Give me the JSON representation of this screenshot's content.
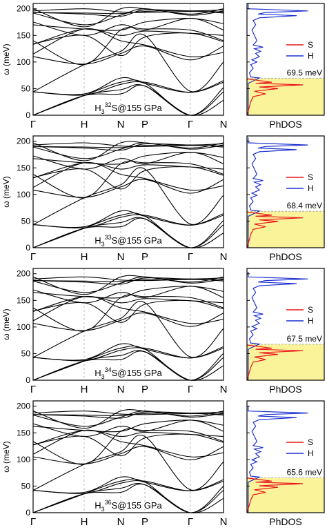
{
  "figure": {
    "ylabel": "ω (meV)",
    "kpath_labels": [
      "Γ",
      "H",
      "N",
      "P",
      "Γ",
      "N"
    ],
    "dos_label": "PhDOS",
    "legend": [
      "S",
      "H"
    ],
    "colors": {
      "S": "#e8151b",
      "H": "#1c2fd0",
      "fill": "#fbf399",
      "dash": "#aaaaaa"
    }
  },
  "chart_data": [
    {
      "type": "line",
      "title": "H₃³²S@155 GPa",
      "isotope": "32",
      "xlabel": "",
      "ylabel": "ω (meV)",
      "ylim": [
        0,
        210
      ],
      "yticks": [
        0,
        50,
        100,
        150,
        200
      ],
      "xticks": [
        "Γ",
        "H",
        "N",
        "P",
        "Γ",
        "N"
      ],
      "series_count": 18
    },
    {
      "type": "area",
      "title": "PhDOS",
      "cutoff_label": "69.5 meV",
      "cutoff": 69.5,
      "ylim": [
        0,
        210
      ],
      "series": [
        {
          "name": "S"
        },
        {
          "name": "H"
        }
      ]
    },
    {
      "type": "line",
      "title": "H₃³³S@155 GPa",
      "isotope": "33",
      "xlabel": "",
      "ylabel": "ω (meV)",
      "ylim": [
        0,
        210
      ],
      "yticks": [
        0,
        50,
        100,
        150,
        200
      ],
      "xticks": [
        "Γ",
        "H",
        "N",
        "P",
        "Γ",
        "N"
      ],
      "series_count": 18
    },
    {
      "type": "area",
      "title": "PhDOS",
      "cutoff_label": "68.4 meV",
      "cutoff": 68.4,
      "ylim": [
        0,
        210
      ],
      "series": [
        {
          "name": "S"
        },
        {
          "name": "H"
        }
      ]
    },
    {
      "type": "line",
      "title": "H₃³⁴S@155 GPa",
      "isotope": "34",
      "xlabel": "",
      "ylabel": "ω (meV)",
      "ylim": [
        0,
        210
      ],
      "yticks": [
        0,
        50,
        100,
        150,
        200
      ],
      "xticks": [
        "Γ",
        "H",
        "N",
        "P",
        "Γ",
        "N"
      ],
      "series_count": 18
    },
    {
      "type": "area",
      "title": "PhDOS",
      "cutoff_label": "67.5 meV",
      "cutoff": 67.5,
      "ylim": [
        0,
        210
      ],
      "series": [
        {
          "name": "S"
        },
        {
          "name": "H"
        }
      ]
    },
    {
      "type": "line",
      "title": "H₃³⁶S@155 GPa",
      "isotope": "36",
      "xlabel": "",
      "ylabel": "ω (meV)",
      "ylim": [
        0,
        210
      ],
      "yticks": [
        0,
        50,
        100,
        150,
        200
      ],
      "xticks": [
        "Γ",
        "H",
        "N",
        "P",
        "Γ",
        "N"
      ],
      "series_count": 18
    },
    {
      "type": "area",
      "title": "PhDOS",
      "cutoff_label": "65.6 meV",
      "cutoff": 65.6,
      "ylim": [
        0,
        210
      ],
      "series": [
        {
          "name": "S"
        },
        {
          "name": "H"
        }
      ]
    }
  ]
}
